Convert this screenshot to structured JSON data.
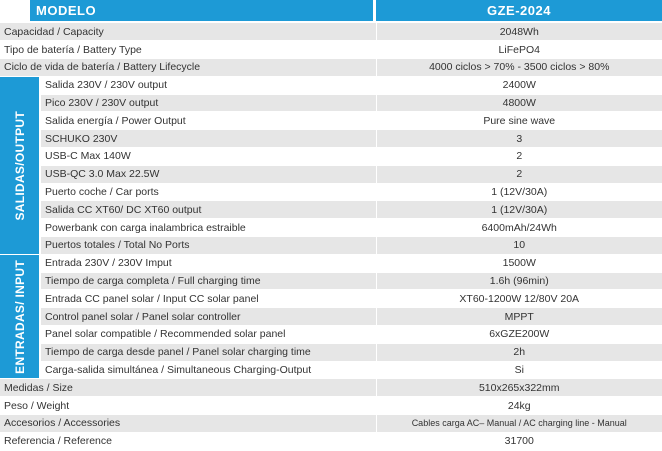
{
  "header": {
    "label": "MODELO",
    "value": "GZE-2024"
  },
  "rows_top": [
    [
      "Capacidad / Capacity",
      "2048Wh"
    ],
    [
      "Tipo de batería / Battery Type",
      "LiFePO4"
    ],
    [
      "Ciclo de vida de batería / Battery Lifecycle",
      "4000 ciclos > 70% - 3500 ciclos > 80%"
    ]
  ],
  "sections": [
    {
      "label": "SALIDAS/OUTPUT",
      "rows": [
        [
          "Salida 230V / 230V output",
          "2400W"
        ],
        [
          "Pico 230V / 230V output",
          "4800W"
        ],
        [
          "Salida energía / Power Output",
          "Pure sine wave"
        ],
        [
          "SCHUKO 230V",
          "3"
        ],
        [
          "USB-C Max 140W",
          "2"
        ],
        [
          "USB-QC 3.0 Max 22.5W",
          "2"
        ],
        [
          "Puerto coche / Car ports",
          "1 (12V/30A)"
        ],
        [
          "Salida CC XT60/ DC XT60 output",
          "1 (12V/30A)"
        ],
        [
          "Powerbank con carga inalambrica estraible",
          "6400mAh/24Wh"
        ],
        [
          "Puertos totales / Total No Ports",
          "10"
        ]
      ]
    },
    {
      "label": "ENTRADAS/ INPUT",
      "rows": [
        [
          "Entrada 230V / 230V Imput",
          "1500W"
        ],
        [
          "Tiempo de carga completa / Full charging time",
          "1.6h (96min)"
        ],
        [
          "Entrada CC panel solar / Input CC solar panel",
          "XT60-1200W 12/80V 20A"
        ],
        [
          "Control panel solar / Panel solar controller",
          "MPPT"
        ],
        [
          "Panel solar compatible / Recommended solar panel",
          "6xGZE200W"
        ],
        [
          "Tiempo de carga desde panel / Panel solar charging time",
          "2h"
        ],
        [
          "Carga-salida simultánea / Simultaneous Charging-Output",
          "Si"
        ]
      ]
    }
  ],
  "rows_bottom": [
    [
      "Medidas / Size",
      "510x265x322mm"
    ],
    [
      "Peso / Weight",
      "24kg"
    ],
    [
      "Accesorios / Accessories",
      "Cables carga AC– Manual / AC charging line - Manual"
    ],
    [
      "Referencia / Reference",
      "31700"
    ]
  ]
}
